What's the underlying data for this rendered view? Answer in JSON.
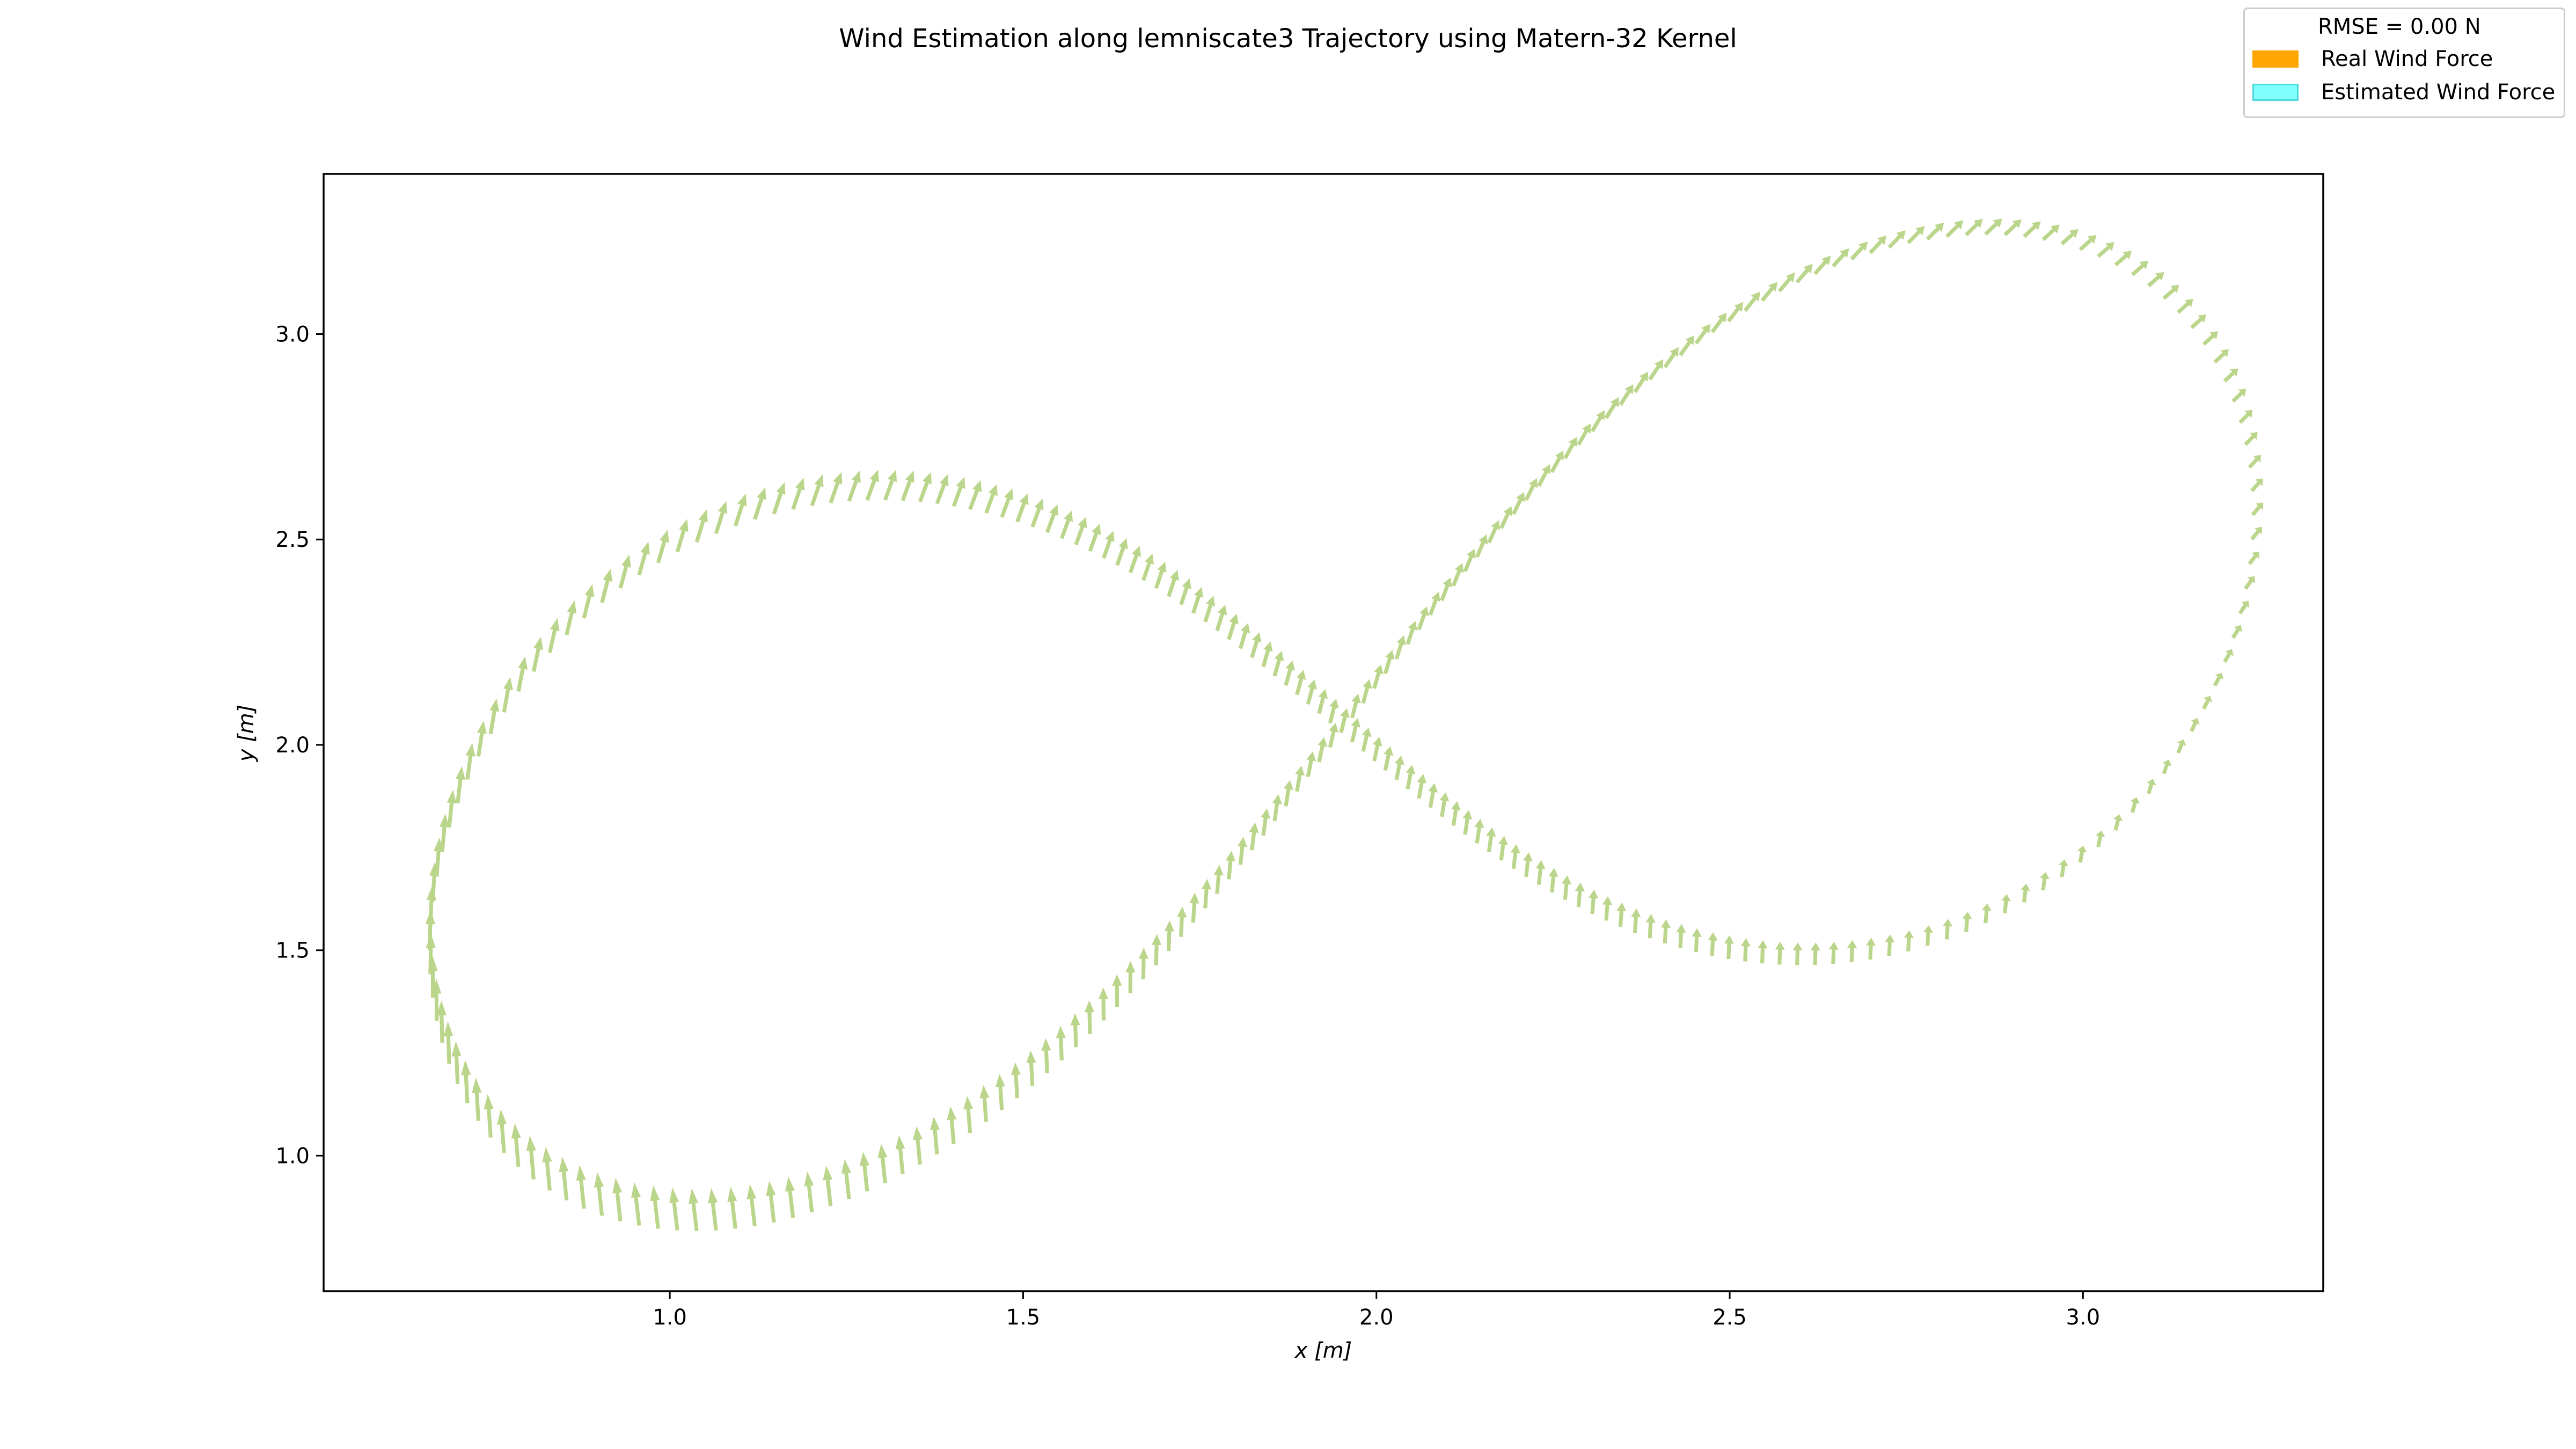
{
  "chart_data": {
    "type": "quiver",
    "title": "Wind Estimation along lemniscate3 Trajectory using Matern-32 Kernel",
    "xlabel": "x [m]",
    "ylabel": "y [m]",
    "xlim": [
      0.51,
      3.34
    ],
    "ylim": [
      0.67,
      3.39
    ],
    "xticks": [
      "1.0",
      "1.5",
      "2.0",
      "2.5",
      "3.0"
    ],
    "yticks": [
      "1.0",
      "1.5",
      "2.0",
      "2.5",
      "3.0"
    ],
    "xtick_values": [
      1.0,
      1.5,
      2.0,
      2.5,
      3.0
    ],
    "ytick_values": [
      1.0,
      1.5,
      2.0,
      2.5,
      3.0
    ],
    "grid": false,
    "legend_position": "upper-right-outside",
    "legend": {
      "header": "RMSE = 0.00 N",
      "entries": [
        {
          "label": "Real Wind Force",
          "color": "#ffa500"
        },
        {
          "label": "Estimated Wind Force",
          "color": "#80ffff"
        }
      ]
    },
    "trajectory": {
      "shape": "lemniscate",
      "center": [
        1.95,
        2.03
      ],
      "half_width": 1.29,
      "half_height": 1.22,
      "tilt": 0.53,
      "num_arrows": 260
    },
    "series": [
      {
        "name": "Real Wind Force",
        "color": "#ffa500"
      },
      {
        "name": "Estimated Wind Force",
        "color": "#80ffff"
      }
    ],
    "wind_field": {
      "base_vector": [
        0.02,
        0.085
      ],
      "spatial_gradient": [
        0.032,
        0.055
      ],
      "reference_point": [
        2.0,
        2.0
      ]
    },
    "rmse": 0.0
  }
}
